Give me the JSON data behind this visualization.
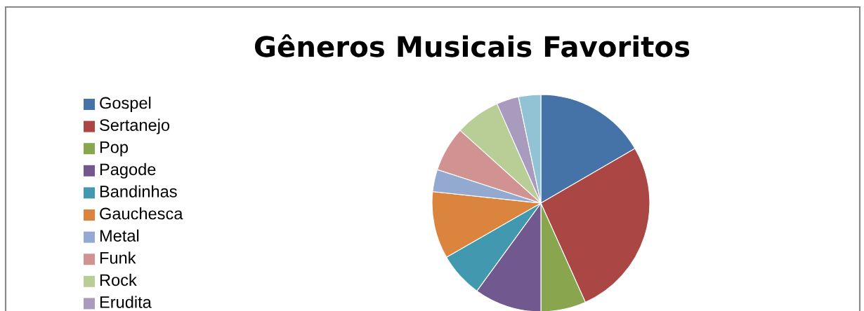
{
  "chart_data": {
    "type": "pie",
    "title": "Gêneros Musicais Favoritos",
    "categories": [
      "Gospel",
      "Sertanejo",
      "Pop",
      "Pagode",
      "Bandinhas",
      "Gauchesca",
      "Metal",
      "Funk",
      "Rock",
      "Erudita",
      null
    ],
    "values": [
      16.6,
      26.7,
      6.7,
      10,
      6.7,
      10,
      3.3,
      6.7,
      6.7,
      3.3,
      3.3
    ],
    "colors": [
      "#4572a7",
      "#aa4643",
      "#89a54e",
      "#71588f",
      "#4198af",
      "#db843d",
      "#93a9cf",
      "#d19392",
      "#b9cd96",
      "#a99bbd",
      "#92c3d4"
    ],
    "legend": "left"
  }
}
